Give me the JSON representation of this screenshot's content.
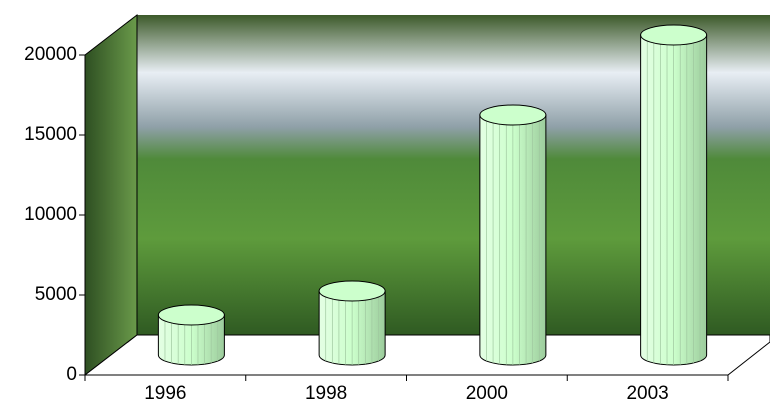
{
  "chart_data": {
    "type": "bar",
    "categories": [
      "1996",
      "1998",
      "2000",
      "2003"
    ],
    "values": [
      2500,
      4000,
      15000,
      20000
    ],
    "color": "#ccffcc",
    "ylim": [
      0,
      20000
    ],
    "yticks": [
      0,
      5000,
      10000,
      15000,
      20000
    ]
  }
}
